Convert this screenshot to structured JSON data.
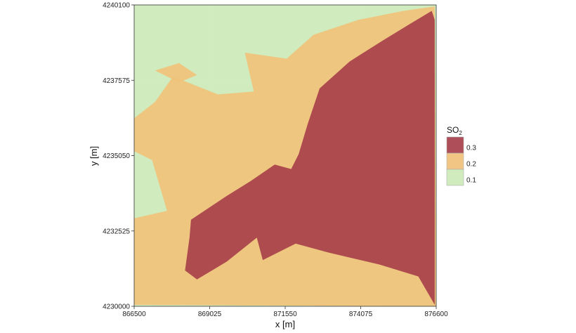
{
  "chart_data": {
    "type": "heatmap",
    "title": "",
    "xlabel": "x [m]",
    "ylabel": "y [m]",
    "xlim": [
      866500,
      876600
    ],
    "ylim": [
      4230000,
      4240100
    ],
    "x_ticks": [
      866500,
      869025,
      871550,
      874075,
      876600
    ],
    "y_ticks": [
      4230000,
      4232525,
      4235050,
      4237575,
      4240100
    ],
    "x_tick_labels": [
      "866500",
      "869025",
      "871550",
      "874075",
      "876600"
    ],
    "y_tick_labels": [
      "4230000",
      "4232525",
      "4235050",
      "4237575",
      "4240100"
    ],
    "grid": true,
    "legend": {
      "title_main": "SO",
      "title_sub": "2",
      "position": "right",
      "levels": [
        {
          "label": "0.3",
          "color": "#a8404b"
        },
        {
          "label": "0.2",
          "color": "#f0c27b"
        },
        {
          "label": "0.1",
          "color": "#cdeab8"
        }
      ]
    },
    "regions": [
      {
        "level": "0.1",
        "color": "#cdeab8",
        "polygon": [
          [
            866500,
            4230000
          ],
          [
            876600,
            4230000
          ],
          [
            876600,
            4240100
          ],
          [
            866500,
            4240100
          ]
        ]
      },
      {
        "level": "0.2",
        "color": "#f0c27b",
        "polygon": [
          [
            866500,
            4230050
          ],
          [
            866500,
            4232950
          ],
          [
            867600,
            4233200
          ],
          [
            867100,
            4234900
          ],
          [
            866500,
            4235200
          ],
          [
            866500,
            4236300
          ],
          [
            867200,
            4236850
          ],
          [
            867800,
            4237700
          ],
          [
            869300,
            4237100
          ],
          [
            870500,
            4237200
          ],
          [
            870200,
            4238500
          ],
          [
            871600,
            4238300
          ],
          [
            872500,
            4239100
          ],
          [
            874000,
            4239600
          ],
          [
            875500,
            4239900
          ],
          [
            876550,
            4240050
          ],
          [
            876600,
            4230000
          ]
        ]
      },
      {
        "level": "0.2",
        "color": "#f0c27b",
        "polygon": [
          [
            867200,
            4237900
          ],
          [
            868000,
            4238150
          ],
          [
            868600,
            4237750
          ],
          [
            868000,
            4237500
          ]
        ]
      },
      {
        "level": "0.3",
        "color": "#a8404b",
        "polygon": [
          [
            868400,
            4232900
          ],
          [
            869600,
            4233700
          ],
          [
            870400,
            4234200
          ],
          [
            871200,
            4234750
          ],
          [
            871750,
            4234600
          ],
          [
            872000,
            4235100
          ],
          [
            872300,
            4236100
          ],
          [
            872700,
            4237300
          ],
          [
            873700,
            4238200
          ],
          [
            874800,
            4238900
          ],
          [
            875700,
            4239450
          ],
          [
            876450,
            4239900
          ],
          [
            876550,
            4239600
          ],
          [
            876550,
            4230050
          ],
          [
            876000,
            4231000
          ],
          [
            874700,
            4231400
          ],
          [
            873000,
            4231800
          ],
          [
            871900,
            4232100
          ],
          [
            870800,
            4231550
          ],
          [
            870600,
            4232300
          ],
          [
            869600,
            4231500
          ],
          [
            868600,
            4230900
          ],
          [
            868200,
            4231200
          ],
          [
            868350,
            4232300
          ]
        ]
      }
    ]
  }
}
